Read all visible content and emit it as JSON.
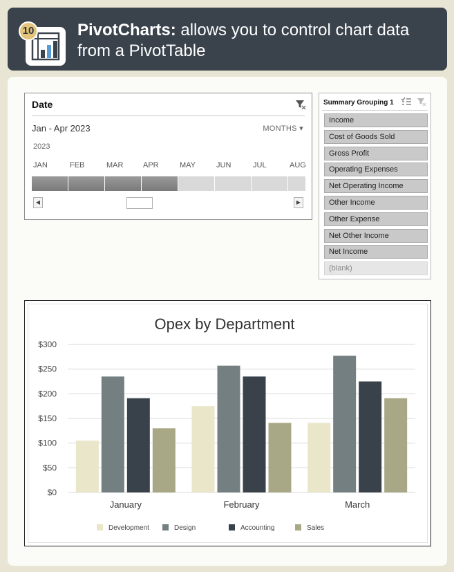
{
  "header": {
    "badge_number": "10",
    "title_bold": "PivotCharts:",
    "title_rest": " allows you to control chart data from a PivotTable",
    "icon": "pivotchart-icon"
  },
  "timeline": {
    "title": "Date",
    "range_label": "Jan - Apr 2023",
    "level_label": "MONTHS",
    "year_label": "2023",
    "months": [
      "JAN",
      "FEB",
      "MAR",
      "APR",
      "MAY",
      "JUN",
      "JUL",
      "AUG"
    ],
    "selected_count": 4,
    "colors": {
      "selected": "#888888",
      "unselected": "#d9d9d9"
    }
  },
  "slicer": {
    "title": "Summary Grouping 1",
    "items": [
      {
        "label": "Income",
        "selected": true
      },
      {
        "label": "Cost of Goods Sold",
        "selected": true
      },
      {
        "label": "Gross Profit",
        "selected": true
      },
      {
        "label": "Operating Expenses",
        "selected": true
      },
      {
        "label": "Net Operating Income",
        "selected": true
      },
      {
        "label": "Other Income",
        "selected": true
      },
      {
        "label": "Other Expense",
        "selected": true
      },
      {
        "label": "Net Other Income",
        "selected": true
      },
      {
        "label": "Net Income",
        "selected": true
      },
      {
        "label": "(blank)",
        "selected": false
      }
    ]
  },
  "chart_data": {
    "type": "bar",
    "title": "Opex by Department",
    "categories": [
      "January",
      "February",
      "March"
    ],
    "series": [
      {
        "name": "Development",
        "values": [
          105,
          175,
          141
        ],
        "color": "#e9e6c9"
      },
      {
        "name": "Design",
        "values": [
          235,
          257,
          277
        ],
        "color": "#737f81"
      },
      {
        "name": "Accounting",
        "values": [
          191,
          235,
          225
        ],
        "color": "#39424a"
      },
      {
        "name": "Sales",
        "values": [
          130,
          141,
          191
        ],
        "color": "#a9a886"
      }
    ],
    "y_ticks": [
      "$0",
      "$50",
      "$100",
      "$150",
      "$200",
      "$250",
      "$300"
    ],
    "ylim": [
      0,
      300
    ],
    "grid": true,
    "legend_position": "bottom"
  }
}
